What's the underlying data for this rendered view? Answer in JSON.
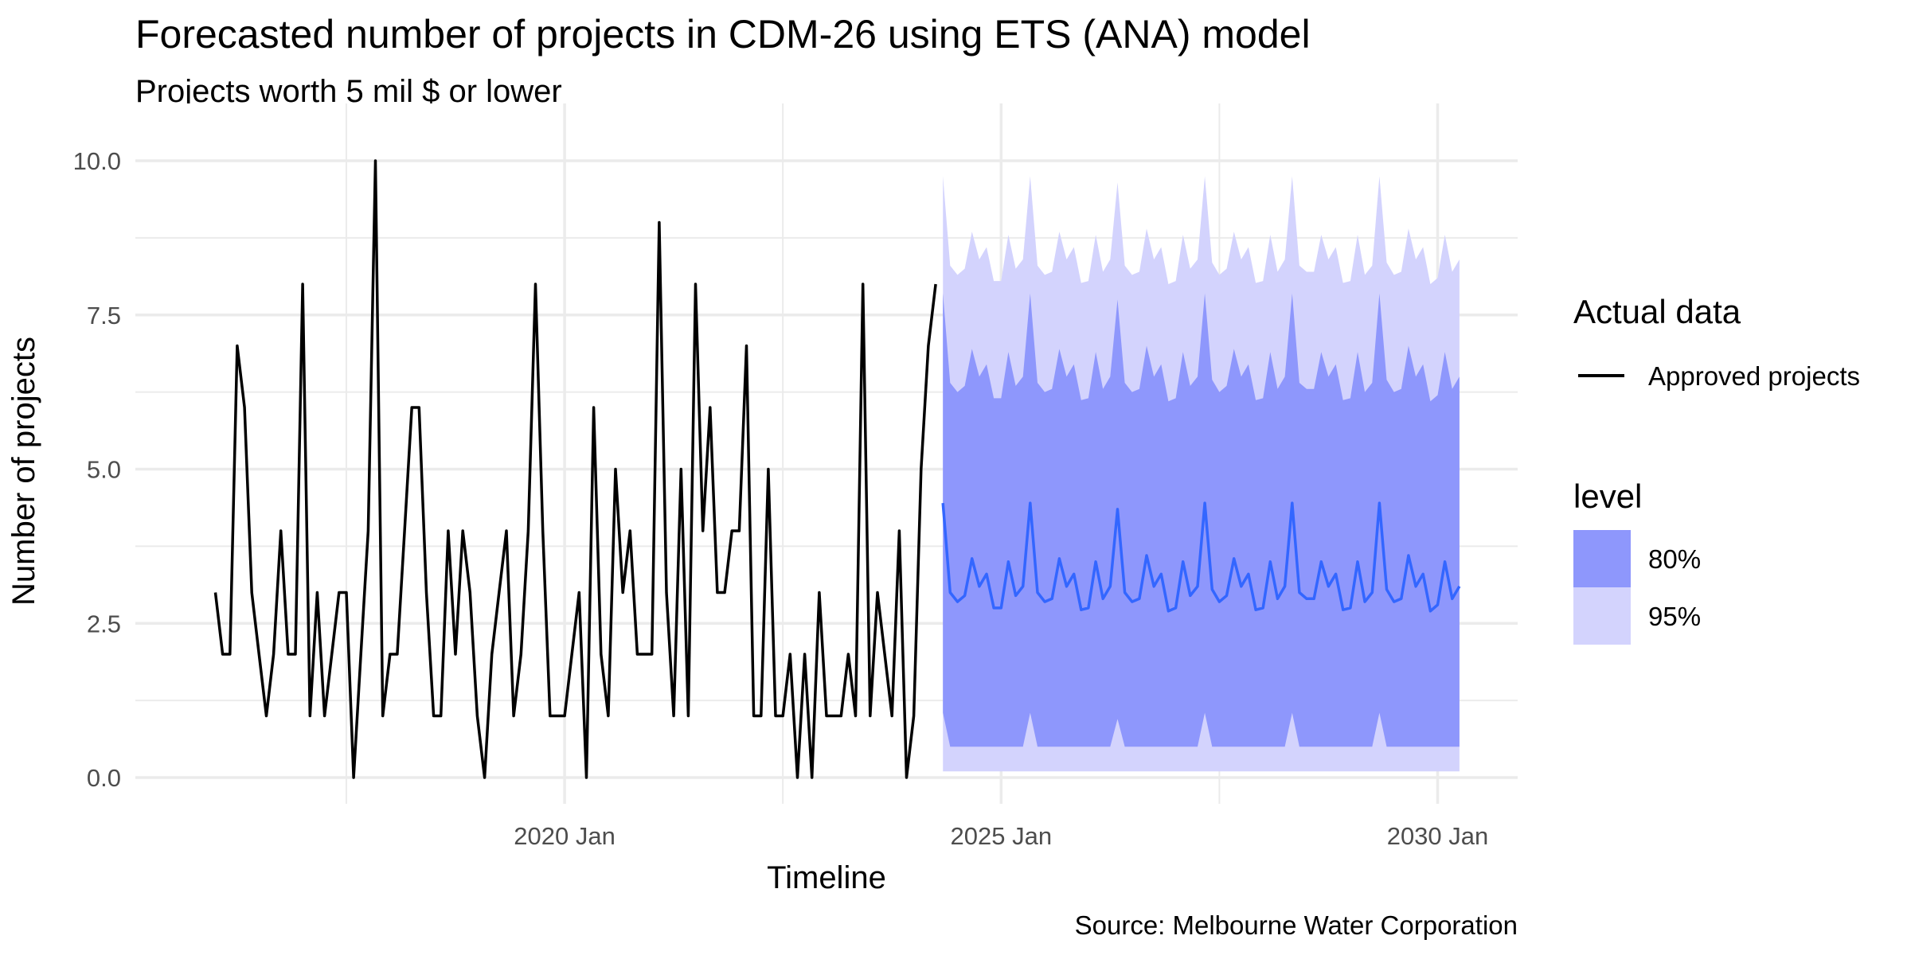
{
  "chart_data": {
    "type": "line",
    "title": "Forecasted number of projects in CDM-26 using ETS (ANA) model",
    "subtitle": "Projects worth 5 mil $ or lower",
    "xlabel": "Timeline",
    "ylabel": "Number of projects",
    "caption": "Source: Melbourne Water Corporation",
    "grid": true,
    "legend_position": "right",
    "ylim": [
      0,
      10
    ],
    "y_ticks": [
      0,
      2.5,
      5,
      7.5,
      10
    ],
    "y_tick_labels": [
      "0.0",
      "2.5",
      "5.0",
      "7.5",
      "10.0"
    ],
    "x_ticks": [
      "2020-01",
      "2025-01",
      "2030-01"
    ],
    "x_tick_labels": [
      "2020 Jan",
      "2025 Jan",
      "2030 Jan"
    ],
    "x_minor_ticks": [
      "2017-07",
      "2022-07",
      "2027-07"
    ],
    "xlim": [
      "2015-02",
      "2030-12"
    ],
    "actual": {
      "legend_title": "Actual data",
      "name": "Approved projects",
      "color": "#000000",
      "start": "2016-01",
      "values": [
        3,
        2,
        2,
        7,
        6,
        3,
        2,
        1,
        2,
        4,
        2,
        2,
        8,
        1,
        3,
        1,
        2,
        3,
        3,
        0,
        2,
        4,
        10,
        1,
        2,
        2,
        4,
        6,
        6,
        3,
        1,
        1,
        4,
        2,
        4,
        3,
        1,
        0,
        2,
        3,
        4,
        1,
        2,
        4,
        8,
        4,
        1,
        1,
        1,
        2,
        3,
        0,
        6,
        2,
        1,
        5,
        3,
        4,
        2,
        2,
        2,
        9,
        3,
        1,
        5,
        1,
        8,
        4,
        6,
        3,
        3,
        4,
        4,
        7,
        1,
        1,
        5,
        1,
        1,
        2,
        0,
        2,
        0,
        3,
        1,
        1,
        1,
        2,
        1,
        8,
        1,
        3,
        2,
        1,
        4,
        0,
        1,
        5,
        7,
        8
      ]
    },
    "forecast": {
      "color": "#3366ff",
      "start": "2024-05",
      "mean": [
        4.45,
        3.0,
        2.85,
        2.95,
        3.55,
        3.1,
        3.3,
        2.75,
        2.75,
        3.5,
        2.95,
        3.1,
        4.45,
        3.0,
        2.85,
        2.9,
        3.55,
        3.1,
        3.3,
        2.72,
        2.75,
        3.5,
        2.9,
        3.1,
        4.35,
        3.0,
        2.85,
        2.9,
        3.6,
        3.1,
        3.3,
        2.7,
        2.75,
        3.5,
        2.95,
        3.1,
        4.45,
        3.05,
        2.85,
        2.95,
        3.55,
        3.1,
        3.3,
        2.72,
        2.75,
        3.5,
        2.9,
        3.1,
        4.45,
        3.0,
        2.9,
        2.9,
        3.5,
        3.1,
        3.3,
        2.72,
        2.75,
        3.5,
        2.85,
        3.0,
        4.45,
        3.05,
        2.85,
        2.9,
        3.6,
        3.1,
        3.3,
        2.7,
        2.8,
        3.5,
        2.9,
        3.1
      ],
      "spread80": 3.4,
      "spread95": 5.3
    },
    "fill_legend": {
      "title": "level",
      "items": [
        {
          "label": "80%",
          "color": "#8e97fc"
        },
        {
          "label": "95%",
          "color": "#d3d3fd"
        }
      ]
    }
  }
}
